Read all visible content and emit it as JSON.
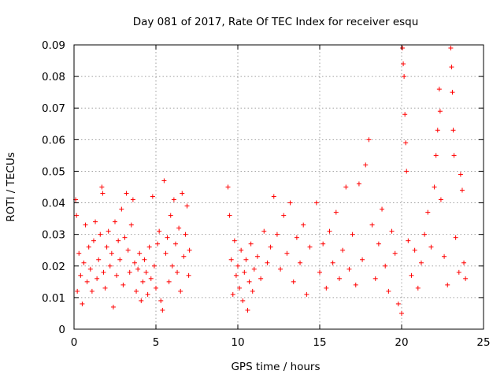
{
  "chart_data": {
    "type": "scatter",
    "title": "Day 081 of 2017, Rate Of TEC Index for receiver esqu",
    "xlabel": "GPS time / hours",
    "ylabel": "ROTI / TECUs",
    "xlim": [
      0,
      25
    ],
    "ylim": [
      0,
      0.09
    ],
    "xticks": [
      0,
      5,
      10,
      15,
      20,
      25
    ],
    "xtick_labels": [
      "0",
      "5",
      "10",
      "15",
      "20",
      "25"
    ],
    "yticks": [
      0,
      0.01,
      0.02,
      0.03,
      0.04,
      0.05,
      0.06,
      0.07,
      0.08,
      0.09
    ],
    "ytick_labels": [
      "0",
      "0.01",
      "0.02",
      "0.03",
      "0.04",
      "0.05",
      "0.06",
      "0.07",
      "0.08",
      "0.09"
    ],
    "grid": true,
    "marker": "+",
    "color": "#ff0000",
    "series": [
      {
        "name": "ROTI",
        "description": "dense cloud of points, values typically 0.01-0.03 TECU/min",
        "points": [
          [
            0.1,
            0.041
          ],
          [
            0.15,
            0.036
          ],
          [
            0.2,
            0.012
          ],
          [
            0.3,
            0.024
          ],
          [
            0.4,
            0.017
          ],
          [
            0.5,
            0.008
          ],
          [
            0.6,
            0.021
          ],
          [
            0.7,
            0.033
          ],
          [
            0.8,
            0.015
          ],
          [
            0.9,
            0.026
          ],
          [
            1.0,
            0.019
          ],
          [
            1.1,
            0.012
          ],
          [
            1.2,
            0.028
          ],
          [
            1.3,
            0.034
          ],
          [
            1.4,
            0.016
          ],
          [
            1.5,
            0.022
          ],
          [
            1.6,
            0.03
          ],
          [
            1.7,
            0.045
          ],
          [
            1.75,
            0.043
          ],
          [
            1.8,
            0.018
          ],
          [
            1.9,
            0.013
          ],
          [
            2.0,
            0.026
          ],
          [
            2.1,
            0.031
          ],
          [
            2.2,
            0.02
          ],
          [
            2.3,
            0.024
          ],
          [
            2.4,
            0.007
          ],
          [
            2.5,
            0.034
          ],
          [
            2.6,
            0.017
          ],
          [
            2.7,
            0.028
          ],
          [
            2.8,
            0.022
          ],
          [
            2.9,
            0.038
          ],
          [
            3.0,
            0.014
          ],
          [
            3.1,
            0.029
          ],
          [
            3.2,
            0.043
          ],
          [
            3.3,
            0.025
          ],
          [
            3.4,
            0.018
          ],
          [
            3.5,
            0.033
          ],
          [
            3.6,
            0.041
          ],
          [
            3.7,
            0.021
          ],
          [
            3.8,
            0.012
          ],
          [
            3.9,
            0.019
          ],
          [
            4.0,
            0.024
          ],
          [
            4.1,
            0.009
          ],
          [
            4.2,
            0.015
          ],
          [
            4.3,
            0.022
          ],
          [
            4.4,
            0.018
          ],
          [
            4.5,
            0.011
          ],
          [
            4.6,
            0.026
          ],
          [
            4.7,
            0.016
          ],
          [
            4.8,
            0.042
          ],
          [
            4.9,
            0.02
          ],
          [
            5.0,
            0.013
          ],
          [
            5.1,
            0.027
          ],
          [
            5.2,
            0.031
          ],
          [
            5.3,
            0.009
          ],
          [
            5.4,
            0.006
          ],
          [
            5.5,
            0.047
          ],
          [
            5.6,
            0.024
          ],
          [
            5.7,
            0.029
          ],
          [
            5.8,
            0.015
          ],
          [
            5.9,
            0.036
          ],
          [
            6.0,
            0.02
          ],
          [
            6.1,
            0.041
          ],
          [
            6.2,
            0.027
          ],
          [
            6.3,
            0.018
          ],
          [
            6.4,
            0.032
          ],
          [
            6.5,
            0.012
          ],
          [
            6.6,
            0.043
          ],
          [
            6.7,
            0.023
          ],
          [
            6.8,
            0.03
          ],
          [
            6.9,
            0.039
          ],
          [
            7.0,
            0.017
          ],
          [
            7.05,
            0.025
          ],
          [
            9.4,
            0.045
          ],
          [
            9.5,
            0.036
          ],
          [
            9.6,
            0.022
          ],
          [
            9.7,
            0.011
          ],
          [
            9.8,
            0.028
          ],
          [
            9.9,
            0.017
          ],
          [
            10.0,
            0.02
          ],
          [
            10.1,
            0.013
          ],
          [
            10.2,
            0.025
          ],
          [
            10.3,
            0.009
          ],
          [
            10.4,
            0.018
          ],
          [
            10.5,
            0.022
          ],
          [
            10.6,
            0.006
          ],
          [
            10.7,
            0.015
          ],
          [
            10.8,
            0.027
          ],
          [
            10.9,
            0.012
          ],
          [
            11.0,
            0.019
          ],
          [
            11.2,
            0.023
          ],
          [
            11.4,
            0.016
          ],
          [
            11.6,
            0.031
          ],
          [
            11.8,
            0.021
          ],
          [
            12.0,
            0.026
          ],
          [
            12.2,
            0.042
          ],
          [
            12.4,
            0.03
          ],
          [
            12.6,
            0.019
          ],
          [
            12.8,
            0.036
          ],
          [
            13.0,
            0.024
          ],
          [
            13.2,
            0.04
          ],
          [
            13.4,
            0.015
          ],
          [
            13.6,
            0.029
          ],
          [
            13.8,
            0.021
          ],
          [
            14.0,
            0.033
          ],
          [
            14.2,
            0.011
          ],
          [
            14.4,
            0.026
          ],
          [
            14.8,
            0.04
          ],
          [
            15.0,
            0.018
          ],
          [
            15.2,
            0.027
          ],
          [
            15.4,
            0.013
          ],
          [
            15.6,
            0.031
          ],
          [
            15.8,
            0.021
          ],
          [
            16.0,
            0.037
          ],
          [
            16.2,
            0.016
          ],
          [
            16.4,
            0.025
          ],
          [
            16.6,
            0.045
          ],
          [
            16.8,
            0.019
          ],
          [
            17.0,
            0.03
          ],
          [
            17.2,
            0.014
          ],
          [
            17.4,
            0.046
          ],
          [
            17.6,
            0.022
          ],
          [
            17.8,
            0.052
          ],
          [
            18.0,
            0.06
          ],
          [
            18.2,
            0.033
          ],
          [
            18.4,
            0.016
          ],
          [
            18.6,
            0.027
          ],
          [
            18.8,
            0.038
          ],
          [
            19.0,
            0.02
          ],
          [
            19.2,
            0.012
          ],
          [
            19.4,
            0.031
          ],
          [
            19.6,
            0.024
          ],
          [
            19.8,
            0.008
          ],
          [
            20.0,
            0.005
          ],
          [
            20.05,
            0.089
          ],
          [
            20.1,
            0.084
          ],
          [
            20.15,
            0.08
          ],
          [
            20.2,
            0.068
          ],
          [
            20.25,
            0.059
          ],
          [
            20.3,
            0.05
          ],
          [
            20.4,
            0.028
          ],
          [
            20.6,
            0.017
          ],
          [
            20.8,
            0.025
          ],
          [
            21.0,
            0.013
          ],
          [
            21.2,
            0.021
          ],
          [
            21.4,
            0.03
          ],
          [
            21.6,
            0.037
          ],
          [
            21.8,
            0.026
          ],
          [
            22.0,
            0.045
          ],
          [
            22.1,
            0.055
          ],
          [
            22.2,
            0.063
          ],
          [
            22.3,
            0.076
          ],
          [
            22.35,
            0.069
          ],
          [
            22.4,
            0.041
          ],
          [
            22.6,
            0.023
          ],
          [
            22.8,
            0.014
          ],
          [
            23.0,
            0.089
          ],
          [
            23.05,
            0.083
          ],
          [
            23.1,
            0.075
          ],
          [
            23.15,
            0.063
          ],
          [
            23.2,
            0.055
          ],
          [
            23.3,
            0.029
          ],
          [
            23.5,
            0.018
          ],
          [
            23.6,
            0.049
          ],
          [
            23.7,
            0.044
          ],
          [
            23.8,
            0.021
          ],
          [
            23.9,
            0.016
          ]
        ]
      }
    ]
  }
}
